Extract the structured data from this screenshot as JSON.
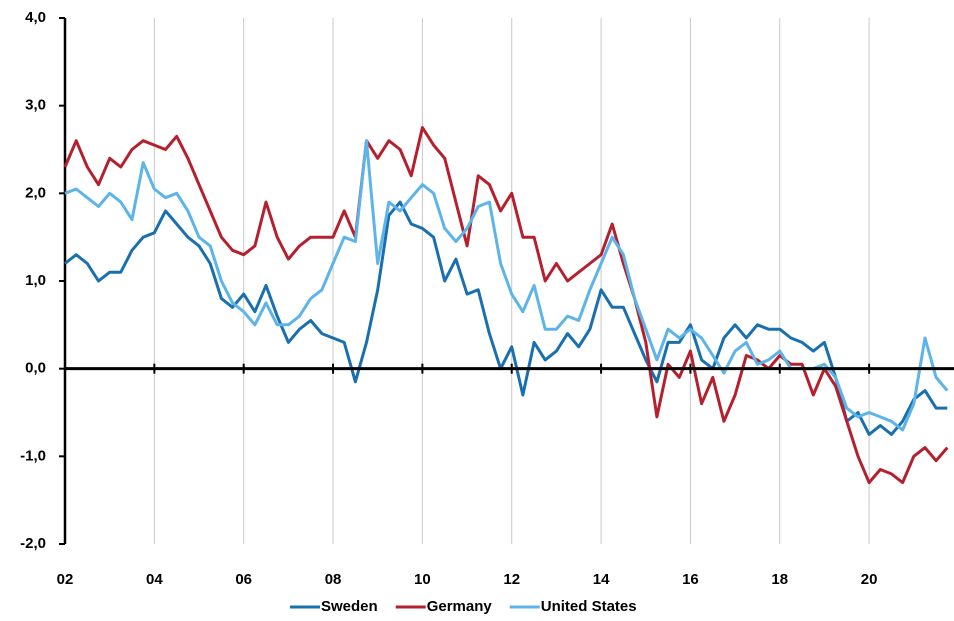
{
  "chart_data": {
    "type": "line",
    "x": [
      2002,
      2002.25,
      2002.5,
      2002.75,
      2003,
      2003.25,
      2003.5,
      2003.75,
      2004,
      2004.25,
      2004.5,
      2004.75,
      2005,
      2005.25,
      2005.5,
      2005.75,
      2006,
      2006.25,
      2006.5,
      2006.75,
      2007,
      2007.25,
      2007.5,
      2007.75,
      2008,
      2008.25,
      2008.5,
      2008.75,
      2009,
      2009.25,
      2009.5,
      2009.75,
      2010,
      2010.25,
      2010.5,
      2010.75,
      2011,
      2011.25,
      2011.5,
      2011.75,
      2012,
      2012.25,
      2012.5,
      2012.75,
      2013,
      2013.25,
      2013.5,
      2013.75,
      2014,
      2014.25,
      2014.5,
      2014.75,
      2015,
      2015.25,
      2015.5,
      2015.75,
      2016,
      2016.25,
      2016.5,
      2016.75,
      2017,
      2017.25,
      2017.5,
      2017.75,
      2018,
      2018.25,
      2018.5,
      2018.75,
      2019,
      2019.25,
      2019.5,
      2019.75,
      2020,
      2020.25,
      2020.5,
      2020.75,
      2021,
      2021.25,
      2021.5,
      2021.75
    ],
    "series": [
      {
        "name": "Sweden",
        "color": "#1a6faf",
        "values": [
          1.2,
          1.3,
          1.2,
          1.0,
          1.1,
          1.1,
          1.35,
          1.5,
          1.55,
          1.8,
          1.65,
          1.5,
          1.4,
          1.2,
          0.8,
          0.7,
          0.85,
          0.65,
          0.95,
          0.6,
          0.3,
          0.45,
          0.55,
          0.4,
          0.35,
          0.3,
          -0.15,
          0.3,
          0.9,
          1.75,
          1.9,
          1.65,
          1.6,
          1.5,
          1.0,
          1.25,
          0.85,
          0.9,
          0.4,
          0.0,
          0.25,
          -0.3,
          0.3,
          0.1,
          0.2,
          0.4,
          0.25,
          0.45,
          0.9,
          0.7,
          0.7,
          0.4,
          0.1,
          -0.15,
          0.3,
          0.3,
          0.5,
          0.1,
          0.0,
          0.35,
          0.5,
          0.35,
          0.5,
          0.45,
          0.45,
          0.35,
          0.3,
          0.2,
          0.3,
          -0.1,
          -0.6,
          -0.5,
          -0.75,
          -0.65,
          -0.75,
          -0.6,
          -0.35,
          -0.25,
          -0.45,
          -0.45
        ]
      },
      {
        "name": "Germany",
        "color": "#b5202e",
        "values": [
          2.3,
          2.6,
          2.3,
          2.1,
          2.4,
          2.3,
          2.5,
          2.6,
          2.55,
          2.5,
          2.65,
          2.4,
          2.1,
          1.8,
          1.5,
          1.35,
          1.3,
          1.4,
          1.9,
          1.5,
          1.25,
          1.4,
          1.5,
          1.5,
          1.5,
          1.8,
          1.5,
          2.6,
          2.4,
          2.6,
          2.5,
          2.2,
          2.75,
          2.55,
          2.4,
          1.9,
          1.4,
          2.2,
          2.1,
          1.8,
          2.0,
          1.5,
          1.5,
          1.0,
          1.2,
          1.0,
          1.1,
          1.2,
          1.3,
          1.65,
          1.2,
          0.8,
          0.3,
          -0.55,
          0.05,
          -0.1,
          0.2,
          -0.4,
          -0.1,
          -0.6,
          -0.3,
          0.15,
          0.1,
          0.0,
          0.15,
          0.05,
          0.05,
          -0.3,
          0.0,
          -0.2,
          -0.6,
          -1.0,
          -1.3,
          -1.15,
          -1.2,
          -1.3,
          -1.0,
          -0.9,
          -1.05,
          -0.9
        ]
      },
      {
        "name": "United States",
        "color": "#5db4e8",
        "values": [
          2.0,
          2.05,
          1.95,
          1.85,
          2.0,
          1.9,
          1.7,
          2.35,
          2.05,
          1.95,
          2.0,
          1.8,
          1.5,
          1.4,
          1.0,
          0.75,
          0.65,
          0.5,
          0.75,
          0.5,
          0.5,
          0.6,
          0.8,
          0.9,
          1.2,
          1.5,
          1.45,
          2.6,
          1.2,
          1.9,
          1.8,
          1.95,
          2.1,
          2.0,
          1.6,
          1.45,
          1.6,
          1.85,
          1.9,
          1.2,
          0.85,
          0.65,
          0.95,
          0.45,
          0.45,
          0.6,
          0.55,
          0.9,
          1.2,
          1.5,
          1.3,
          0.8,
          0.45,
          0.1,
          0.45,
          0.35,
          0.45,
          0.35,
          0.15,
          -0.05,
          0.2,
          0.3,
          0.05,
          0.1,
          0.2,
          0.0,
          0.0,
          0.0,
          0.05,
          -0.1,
          -0.45,
          -0.55,
          -0.5,
          -0.55,
          -0.6,
          -0.7,
          -0.4,
          0.35,
          -0.1,
          -0.25
        ]
      }
    ],
    "xlim": [
      2002,
      2021.9
    ],
    "xticks": [
      {
        "value": 2002,
        "label": "02"
      },
      {
        "value": 2004,
        "label": "04"
      },
      {
        "value": 2006,
        "label": "06"
      },
      {
        "value": 2008,
        "label": "08"
      },
      {
        "value": 2010,
        "label": "10"
      },
      {
        "value": 2012,
        "label": "12"
      },
      {
        "value": 2014,
        "label": "14"
      },
      {
        "value": 2016,
        "label": "16"
      },
      {
        "value": 2018,
        "label": "18"
      },
      {
        "value": 2020,
        "label": "20"
      }
    ],
    "ylim": [
      -2,
      4
    ],
    "yticks": [
      {
        "value": 4,
        "label": "4,0"
      },
      {
        "value": 3,
        "label": "3,0"
      },
      {
        "value": 2,
        "label": "2,0"
      },
      {
        "value": 1,
        "label": "1,0"
      },
      {
        "value": 0,
        "label": "0,0"
      },
      {
        "value": -1,
        "label": "-1,0"
      },
      {
        "value": -2,
        "label": "-2,0"
      }
    ],
    "grid": true
  }
}
